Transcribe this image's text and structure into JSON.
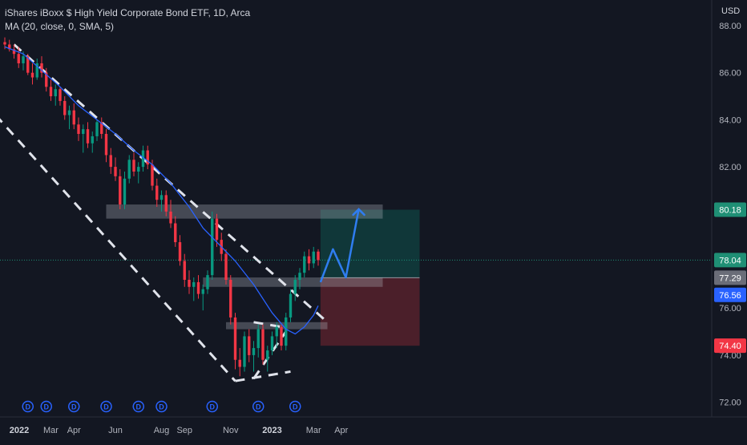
{
  "chart_data": {
    "type": "candlestick",
    "title": "iShares iBoxx $ High Yield Corporate Bond ETF, 1D, Arca",
    "indicator": "MA (20, close, 0, SMA, 5)",
    "currency": "USD",
    "ylim": [
      71.6,
      88.4
    ],
    "price_ticks": [
      "88.00",
      "86.00",
      "84.00",
      "82.00",
      "78.00",
      "76.00",
      "74.00",
      "72.00"
    ],
    "time_labels": [
      "2022",
      "Mar",
      "Apr",
      "Jun",
      "Aug",
      "Sep",
      "Nov",
      "2023",
      "Mar",
      "Apr"
    ],
    "price_badges": [
      {
        "label": "80.18",
        "value": 80.18,
        "color": "#1f8f75"
      },
      {
        "label": "78.04",
        "value": 78.04,
        "color": "#1f8f75"
      },
      {
        "label": "77.29",
        "value": 77.29,
        "color": "#6a6d78"
      },
      {
        "label": "76.56",
        "value": 76.56,
        "color": "#2962ff"
      },
      {
        "label": "74.40",
        "value": 74.4,
        "color": "#f23645"
      }
    ],
    "dividend_marker": "D",
    "candles": [
      [
        87.3,
        87.5,
        87.0,
        87.2
      ],
      [
        87.2,
        87.4,
        86.9,
        87.0
      ],
      [
        87.0,
        87.2,
        86.6,
        86.8
      ],
      [
        86.8,
        87.1,
        86.2,
        86.4
      ],
      [
        86.4,
        86.9,
        86.1,
        86.7
      ],
      [
        86.7,
        86.8,
        85.9,
        86.0
      ],
      [
        86.0,
        86.4,
        85.5,
        85.8
      ],
      [
        85.8,
        86.6,
        85.7,
        86.4
      ],
      [
        86.4,
        86.7,
        85.8,
        86.0
      ],
      [
        86.0,
        86.2,
        85.2,
        85.4
      ],
      [
        85.4,
        85.7,
        84.8,
        85.0
      ],
      [
        85.0,
        85.5,
        84.6,
        85.3
      ],
      [
        85.3,
        85.4,
        84.6,
        84.8
      ],
      [
        84.8,
        85.0,
        84.0,
        84.2
      ],
      [
        84.2,
        84.6,
        83.6,
        84.4
      ],
      [
        84.4,
        84.7,
        83.6,
        83.8
      ],
      [
        83.8,
        84.1,
        83.1,
        83.4
      ],
      [
        83.4,
        83.8,
        82.6,
        83.6
      ],
      [
        83.6,
        83.9,
        82.8,
        83.0
      ],
      [
        83.0,
        83.5,
        82.6,
        83.3
      ],
      [
        83.3,
        84.0,
        83.1,
        83.9
      ],
      [
        83.9,
        84.1,
        83.2,
        83.4
      ],
      [
        83.4,
        83.6,
        82.2,
        82.5
      ],
      [
        82.5,
        82.8,
        81.7,
        82.0
      ],
      [
        82.0,
        82.4,
        81.4,
        81.6
      ],
      [
        81.6,
        81.9,
        80.2,
        80.4
      ],
      [
        80.4,
        81.8,
        80.2,
        81.5
      ],
      [
        81.5,
        82.5,
        81.3,
        82.3
      ],
      [
        82.3,
        82.6,
        81.6,
        81.8
      ],
      [
        81.8,
        82.2,
        81.3,
        82.0
      ],
      [
        82.0,
        82.9,
        81.8,
        82.7
      ],
      [
        82.7,
        82.9,
        81.9,
        82.1
      ],
      [
        82.1,
        82.3,
        81.0,
        81.2
      ],
      [
        81.2,
        81.5,
        80.3,
        80.6
      ],
      [
        80.6,
        81.0,
        80.1,
        80.8
      ],
      [
        80.8,
        81.0,
        79.9,
        80.1
      ],
      [
        80.1,
        80.6,
        79.4,
        79.6
      ],
      [
        79.6,
        79.9,
        78.6,
        78.8
      ],
      [
        78.8,
        79.1,
        77.8,
        78.0
      ],
      [
        78.0,
        78.3,
        76.9,
        77.2
      ],
      [
        77.2,
        77.6,
        76.6,
        76.9
      ],
      [
        76.9,
        77.3,
        76.3,
        77.1
      ],
      [
        77.1,
        77.4,
        76.4,
        76.6
      ],
      [
        76.6,
        77.0,
        75.9,
        76.8
      ],
      [
        76.8,
        77.6,
        76.6,
        77.4
      ],
      [
        77.4,
        80.1,
        77.2,
        79.8
      ],
      [
        79.8,
        80.0,
        78.6,
        78.9
      ],
      [
        78.9,
        79.2,
        78.0,
        78.3
      ],
      [
        78.3,
        78.5,
        77.0,
        77.2
      ],
      [
        77.2,
        77.4,
        75.3,
        75.6
      ],
      [
        75.6,
        75.8,
        73.4,
        73.8
      ],
      [
        73.8,
        74.3,
        73.1,
        73.5
      ],
      [
        73.5,
        75.0,
        73.3,
        74.8
      ],
      [
        74.8,
        75.1,
        73.7,
        74.0
      ],
      [
        74.0,
        74.6,
        73.3,
        74.3
      ],
      [
        74.3,
        75.3,
        73.9,
        75.1
      ],
      [
        75.1,
        75.3,
        73.6,
        73.8
      ],
      [
        73.8,
        74.4,
        73.3,
        74.2
      ],
      [
        74.2,
        75.0,
        74.0,
        74.8
      ],
      [
        74.8,
        75.4,
        74.3,
        75.2
      ],
      [
        75.2,
        75.3,
        74.2,
        74.4
      ],
      [
        74.4,
        75.8,
        74.2,
        75.6
      ],
      [
        75.6,
        76.8,
        75.4,
        76.6
      ],
      [
        76.6,
        77.4,
        76.3,
        77.2
      ],
      [
        77.2,
        77.7,
        76.8,
        77.5
      ],
      [
        77.5,
        78.4,
        77.3,
        78.2
      ],
      [
        78.2,
        78.5,
        77.6,
        77.9
      ],
      [
        77.9,
        78.6,
        77.7,
        78.4
      ],
      [
        78.4,
        78.5,
        77.8,
        78.04
      ]
    ],
    "ma": [
      [
        0,
        87.1
      ],
      [
        4,
        86.8
      ],
      [
        8,
        86.1
      ],
      [
        12,
        85.4
      ],
      [
        16,
        84.6
      ],
      [
        20,
        84.0
      ],
      [
        24,
        83.4
      ],
      [
        28,
        82.7
      ],
      [
        32,
        82.1
      ],
      [
        36,
        81.3
      ],
      [
        40,
        80.3
      ],
      [
        43,
        79.4
      ],
      [
        46,
        78.8
      ],
      [
        50,
        78.0
      ],
      [
        54,
        77.0
      ],
      [
        58,
        75.8
      ],
      [
        61,
        75.1
      ],
      [
        63,
        74.9
      ],
      [
        65,
        75.2
      ],
      [
        67,
        75.7
      ],
      [
        68,
        76.1
      ]
    ],
    "channel_lines": [
      {
        "points": [
          [
            2,
            87.2
          ],
          [
            70,
            75.4
          ]
        ]
      },
      {
        "points": [
          [
            -2,
            84.2
          ],
          [
            50,
            72.9
          ]
        ]
      },
      {
        "points": [
          [
            50,
            72.9
          ],
          [
            62,
            73.3
          ]
        ]
      },
      {
        "points": [
          [
            54,
            75.4
          ],
          [
            60,
            75.2
          ]
        ]
      },
      {
        "points": [
          [
            54,
            73.0
          ],
          [
            61,
            75.0
          ]
        ]
      }
    ],
    "zones": [
      {
        "from": 22,
        "to": 82,
        "low": 79.8,
        "high": 80.4
      },
      {
        "from": 43,
        "to": 70,
        "low": 76.9,
        "high": 77.3
      },
      {
        "from": 48,
        "to": 70,
        "low": 75.1,
        "high": 75.4
      },
      {
        "from": 70,
        "to": 82,
        "low": 76.9,
        "high": 77.3
      }
    ],
    "position": {
      "from": 68.5,
      "to": 90,
      "entry": 77.29,
      "target": 80.18,
      "stop": 74.4
    },
    "projection": [
      [
        68.5,
        77.1
      ],
      [
        71.2,
        78.5
      ],
      [
        74.0,
        77.3
      ],
      [
        76.8,
        80.2
      ]
    ],
    "dividends": [
      5,
      9,
      15,
      22,
      29,
      34,
      45,
      55,
      63
    ],
    "time_label_positions": [
      1,
      10,
      15,
      24,
      34,
      39,
      49,
      58,
      67,
      73
    ]
  }
}
